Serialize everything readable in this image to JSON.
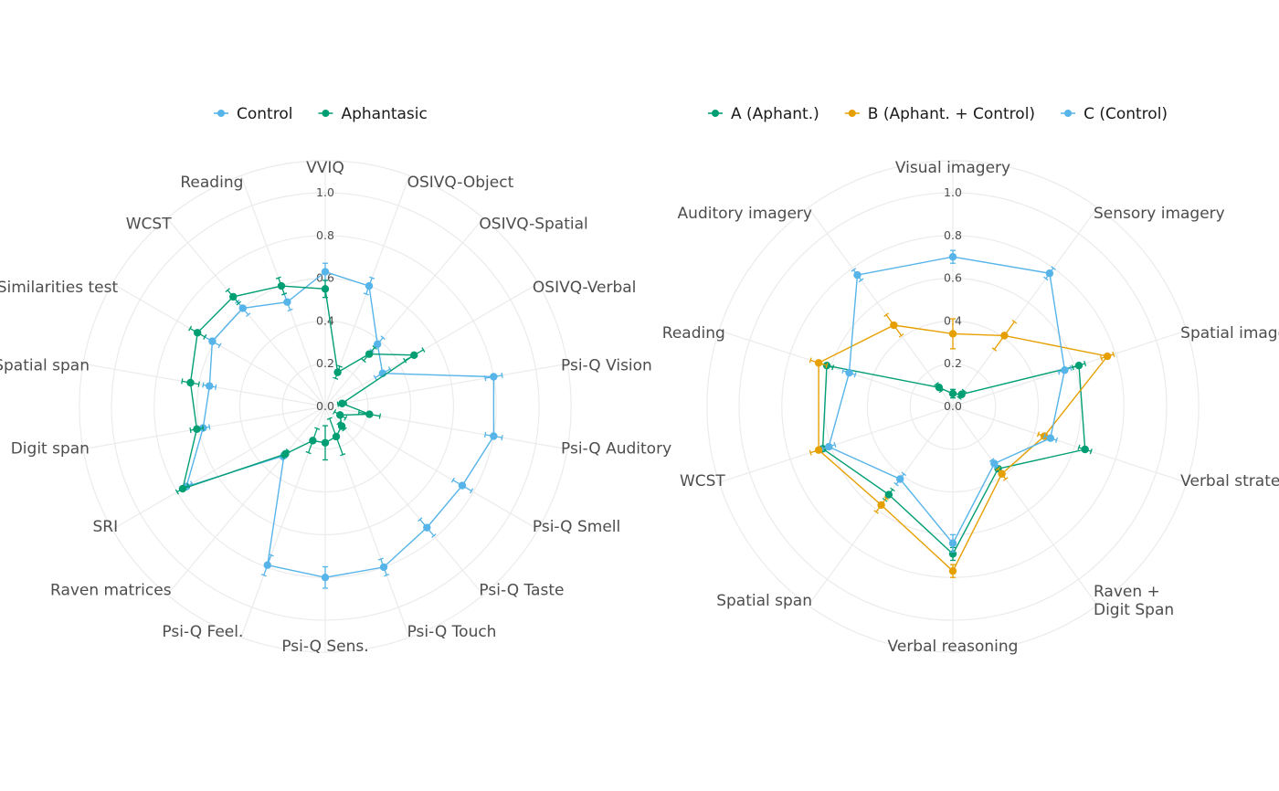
{
  "chart_data": [
    {
      "type": "radar",
      "title": "",
      "rlim": [
        0,
        1
      ],
      "r_ticks": [
        "0.0",
        "0.2",
        "0.4",
        "0.6",
        "0.8",
        "1.0"
      ],
      "r_tick_values": [
        0,
        0.2,
        0.4,
        0.6,
        0.8,
        1.0
      ],
      "grid": true,
      "legend_position": "top",
      "categories": [
        "VVIQ",
        "OSIVQ-Object",
        "OSIVQ-Spatial",
        "OSIVQ-Verbal",
        "Psi-Q Vision",
        "Psi-Q Auditory",
        "Psi-Q Smell",
        "Psi-Q Taste",
        "Psi-Q Touch",
        "Psi-Q Sens.",
        "Psi-Q Feel.",
        "Raven matrices",
        "SRI",
        "Digit span",
        "Spatial span",
        "Similarities test",
        "WCST",
        "Reading"
      ],
      "series": [
        {
          "name": "Control",
          "color": "#56B4E9",
          "values": [
            0.63,
            0.6,
            0.38,
            0.31,
            0.8,
            0.8,
            0.74,
            0.74,
            0.8,
            0.8,
            0.79,
            0.3,
            0.75,
            0.58,
            0.55,
            0.61,
            0.6,
            0.52
          ],
          "errors": [
            0.04,
            0.04,
            0.04,
            0.04,
            0.04,
            0.04,
            0.05,
            0.05,
            0.04,
            0.05,
            0.05,
            0.02,
            0.03,
            0.03,
            0.03,
            0.04,
            0.04,
            0.04
          ]
        },
        {
          "name": "Aphantasic",
          "color": "#009E73",
          "values": [
            0.55,
            0.17,
            0.32,
            0.48,
            0.08,
            0.21,
            0.08,
            0.12,
            0.15,
            0.17,
            0.17,
            0.29,
            0.77,
            0.61,
            0.64,
            0.69,
            0.67,
            0.6
          ],
          "errors": [
            0.04,
            0.03,
            0.04,
            0.05,
            0.02,
            0.05,
            0.03,
            0.02,
            0.09,
            0.08,
            0.06,
            0.02,
            0.03,
            0.03,
            0.04,
            0.04,
            0.04,
            0.04
          ]
        }
      ]
    },
    {
      "type": "radar",
      "title": "",
      "rlim": [
        0,
        1
      ],
      "r_ticks": [
        "0.0",
        "0.2",
        "0.4",
        "0.6",
        "0.8",
        "1.0"
      ],
      "r_tick_values": [
        0,
        0.2,
        0.4,
        0.6,
        0.8,
        1.0
      ],
      "grid": true,
      "legend_position": "top",
      "categories": [
        "Visual imagery",
        "Sensory imagery",
        "Spatial imagery",
        "Verbal strategies",
        "Raven +\nDigit Span",
        "Verbal reasoning",
        "Spatial span",
        "WCST",
        "Reading",
        "Auditory imagery"
      ],
      "series": [
        {
          "name": "A (Aphant.)",
          "color": "#009E73",
          "values": [
            0.06,
            0.07,
            0.62,
            0.65,
            0.36,
            0.69,
            0.51,
            0.64,
            0.62,
            0.11
          ],
          "errors": [
            0.02,
            0.02,
            0.03,
            0.03,
            0.02,
            0.03,
            0.03,
            0.03,
            0.03,
            0.02
          ]
        },
        {
          "name": "B (Aphant. + Control)",
          "color": "#E69F00",
          "values": [
            0.34,
            0.41,
            0.76,
            0.45,
            0.39,
            0.77,
            0.57,
            0.66,
            0.66,
            0.47
          ],
          "errors": [
            0.07,
            0.08,
            0.03,
            0.03,
            0.03,
            0.03,
            0.04,
            0.04,
            0.04,
            0.06
          ]
        },
        {
          "name": "C (Control)",
          "color": "#56B4E9",
          "values": [
            0.7,
            0.77,
            0.55,
            0.48,
            0.33,
            0.64,
            0.42,
            0.61,
            0.51,
            0.76
          ],
          "errors": [
            0.03,
            0.03,
            0.03,
            0.03,
            0.02,
            0.04,
            0.03,
            0.03,
            0.03,
            0.03
          ]
        }
      ]
    }
  ]
}
